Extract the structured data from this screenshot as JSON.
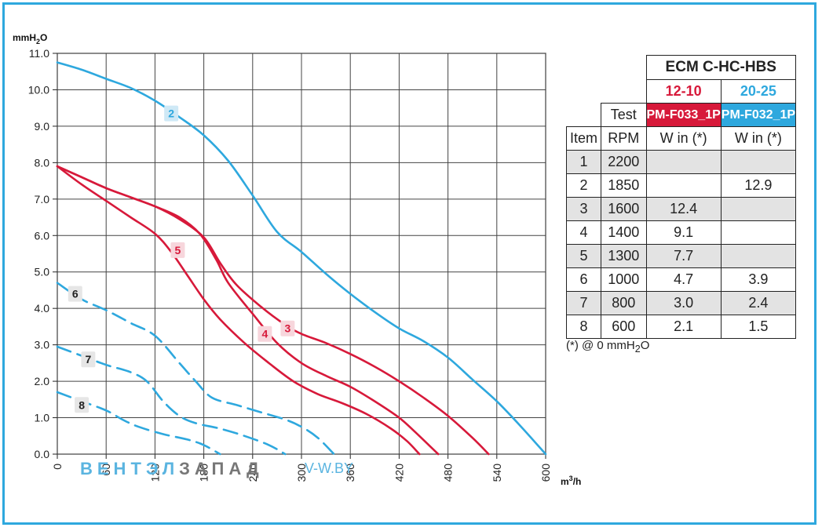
{
  "chart_data": {
    "type": "line",
    "ylabel_parts": {
      "main": "mmH",
      "sub": "2",
      "tail": "O"
    },
    "xlabel_parts": {
      "main": "m",
      "sup": "3",
      "tail": "/h"
    },
    "xlim": [
      0,
      600
    ],
    "ylim": [
      0,
      11
    ],
    "x_ticks": [
      "0",
      "60",
      "120",
      "180",
      "240",
      "300",
      "360",
      "420",
      "480",
      "540",
      "600"
    ],
    "y_ticks": [
      "0.0",
      "1.0",
      "2.0",
      "3.0",
      "4.0",
      "5.0",
      "6.0",
      "7.0",
      "8.0",
      "9.0",
      "10.0",
      "11.0"
    ],
    "grid": true,
    "series": [
      {
        "name": "2",
        "color": "#2ea8de",
        "dashed": false,
        "points": [
          [
            0,
            10.75
          ],
          [
            30,
            10.55
          ],
          [
            60,
            10.3
          ],
          [
            90,
            10.05
          ],
          [
            120,
            9.7
          ],
          [
            150,
            9.25
          ],
          [
            180,
            8.75
          ],
          [
            210,
            8.05
          ],
          [
            240,
            7.1
          ],
          [
            270,
            6.1
          ],
          [
            300,
            5.55
          ],
          [
            330,
            4.95
          ],
          [
            360,
            4.4
          ],
          [
            390,
            3.9
          ],
          [
            420,
            3.45
          ],
          [
            450,
            3.1
          ],
          [
            480,
            2.65
          ],
          [
            510,
            2.05
          ],
          [
            540,
            1.45
          ],
          [
            570,
            0.75
          ],
          [
            600,
            0
          ]
        ]
      },
      {
        "name": "3",
        "color": "#d7193a",
        "dashed": false,
        "points": [
          [
            0,
            7.9
          ],
          [
            30,
            7.6
          ],
          [
            60,
            7.3
          ],
          [
            90,
            7.05
          ],
          [
            120,
            6.8
          ],
          [
            150,
            6.45
          ],
          [
            180,
            5.95
          ],
          [
            200,
            5.25
          ],
          [
            220,
            4.65
          ],
          [
            250,
            4.05
          ],
          [
            280,
            3.55
          ],
          [
            300,
            3.3
          ],
          [
            330,
            3.05
          ],
          [
            360,
            2.75
          ],
          [
            390,
            2.4
          ],
          [
            420,
            2.0
          ],
          [
            450,
            1.55
          ],
          [
            480,
            1.05
          ],
          [
            510,
            0.45
          ],
          [
            530,
            0
          ]
        ]
      },
      {
        "name": "4",
        "color": "#d7193a",
        "dashed": false,
        "points": [
          [
            0,
            7.9
          ],
          [
            30,
            7.6
          ],
          [
            60,
            7.3
          ],
          [
            90,
            7.05
          ],
          [
            120,
            6.8
          ],
          [
            150,
            6.5
          ],
          [
            175,
            6.05
          ],
          [
            195,
            5.35
          ],
          [
            210,
            4.7
          ],
          [
            240,
            3.85
          ],
          [
            270,
            3.05
          ],
          [
            300,
            2.5
          ],
          [
            330,
            2.15
          ],
          [
            360,
            1.85
          ],
          [
            390,
            1.45
          ],
          [
            420,
            1.0
          ],
          [
            440,
            0.6
          ],
          [
            468,
            0
          ]
        ]
      },
      {
        "name": "5",
        "color": "#d7193a",
        "dashed": false,
        "points": [
          [
            0,
            7.9
          ],
          [
            30,
            7.4
          ],
          [
            60,
            6.95
          ],
          [
            90,
            6.5
          ],
          [
            120,
            6.05
          ],
          [
            140,
            5.55
          ],
          [
            160,
            4.9
          ],
          [
            180,
            4.25
          ],
          [
            200,
            3.7
          ],
          [
            230,
            3.05
          ],
          [
            260,
            2.5
          ],
          [
            290,
            2.0
          ],
          [
            320,
            1.65
          ],
          [
            350,
            1.4
          ],
          [
            380,
            1.1
          ],
          [
            410,
            0.7
          ],
          [
            430,
            0.35
          ],
          [
            445,
            0
          ]
        ]
      },
      {
        "name": "6",
        "color": "#2ea8de",
        "dashed": true,
        "points": [
          [
            0,
            4.7
          ],
          [
            30,
            4.25
          ],
          [
            60,
            3.95
          ],
          [
            90,
            3.6
          ],
          [
            120,
            3.25
          ],
          [
            150,
            2.5
          ],
          [
            170,
            2.0
          ],
          [
            190,
            1.55
          ],
          [
            220,
            1.35
          ],
          [
            250,
            1.15
          ],
          [
            280,
            0.95
          ],
          [
            300,
            0.75
          ],
          [
            320,
            0.45
          ],
          [
            340,
            0
          ]
        ]
      },
      {
        "name": "7",
        "color": "#2ea8de",
        "dashed": true,
        "points": [
          [
            0,
            2.95
          ],
          [
            30,
            2.7
          ],
          [
            60,
            2.45
          ],
          [
            90,
            2.25
          ],
          [
            110,
            2.0
          ],
          [
            130,
            1.45
          ],
          [
            150,
            1.05
          ],
          [
            170,
            0.85
          ],
          [
            200,
            0.7
          ],
          [
            230,
            0.5
          ],
          [
            260,
            0.25
          ],
          [
            280,
            0
          ]
        ]
      },
      {
        "name": "8",
        "color": "#2ea8de",
        "dashed": true,
        "points": [
          [
            0,
            1.7
          ],
          [
            30,
            1.45
          ],
          [
            60,
            1.2
          ],
          [
            80,
            0.95
          ],
          [
            100,
            0.75
          ],
          [
            130,
            0.55
          ],
          [
            160,
            0.4
          ],
          [
            180,
            0.25
          ],
          [
            200,
            0
          ]
        ]
      }
    ],
    "series_labels": [
      {
        "name": "2",
        "at": [
          140,
          9.35
        ],
        "bg": "#cfe9f6",
        "fg": "#2ea8de"
      },
      {
        "name": "3",
        "at": [
          283,
          3.45
        ],
        "bg": "#f7d6dc",
        "fg": "#d7193a"
      },
      {
        "name": "4",
        "at": [
          255,
          3.3
        ],
        "bg": "#f7d6dc",
        "fg": "#d7193a"
      },
      {
        "name": "5",
        "at": [
          148,
          5.6
        ],
        "bg": "#f7d6dc",
        "fg": "#d7193a"
      },
      {
        "name": "6",
        "at": [
          22,
          4.4
        ],
        "bg": "#e6e6e6",
        "fg": "#222222"
      },
      {
        "name": "7",
        "at": [
          38,
          2.6
        ],
        "bg": "#e6e6e6",
        "fg": "#222222"
      },
      {
        "name": "8",
        "at": [
          30,
          1.35
        ],
        "bg": "#e6e6e6",
        "fg": "#222222"
      }
    ]
  },
  "watermark": {
    "brand_a": "ВЕНТЭЛ",
    "brand_b": "ЗАПАД",
    "site": "V-W.BY",
    "color_a": "#5ab4e0",
    "color_b": "#777777"
  },
  "table": {
    "title": "ECM C-HC-HBS",
    "col_a_size": "12-10",
    "col_b_size": "20-25",
    "test_label": "Test",
    "col_a_model": "PM-F033_1P",
    "col_b_model": "PM-F032_1P",
    "col_item": "Item",
    "col_rpm": "RPM",
    "col_a_unit": "W in (*)",
    "col_b_unit": "W in (*)",
    "rows": [
      {
        "item": "1",
        "rpm": "2200",
        "a": "",
        "b": ""
      },
      {
        "item": "2",
        "rpm": "1850",
        "a": "",
        "b": "12.9"
      },
      {
        "item": "3",
        "rpm": "1600",
        "a": "12.4",
        "b": ""
      },
      {
        "item": "4",
        "rpm": "1400",
        "a": "9.1",
        "b": ""
      },
      {
        "item": "5",
        "rpm": "1300",
        "a": "7.7",
        "b": ""
      },
      {
        "item": "6",
        "rpm": "1000",
        "a": "4.7",
        "b": "3.9"
      },
      {
        "item": "7",
        "rpm": "800",
        "a": "3.0",
        "b": "2.4"
      },
      {
        "item": "8",
        "rpm": "600",
        "a": "2.1",
        "b": "1.5"
      }
    ],
    "footnote_parts": {
      "main": "(*) @ 0 mmH",
      "sub": "2",
      "tail": "O"
    }
  }
}
